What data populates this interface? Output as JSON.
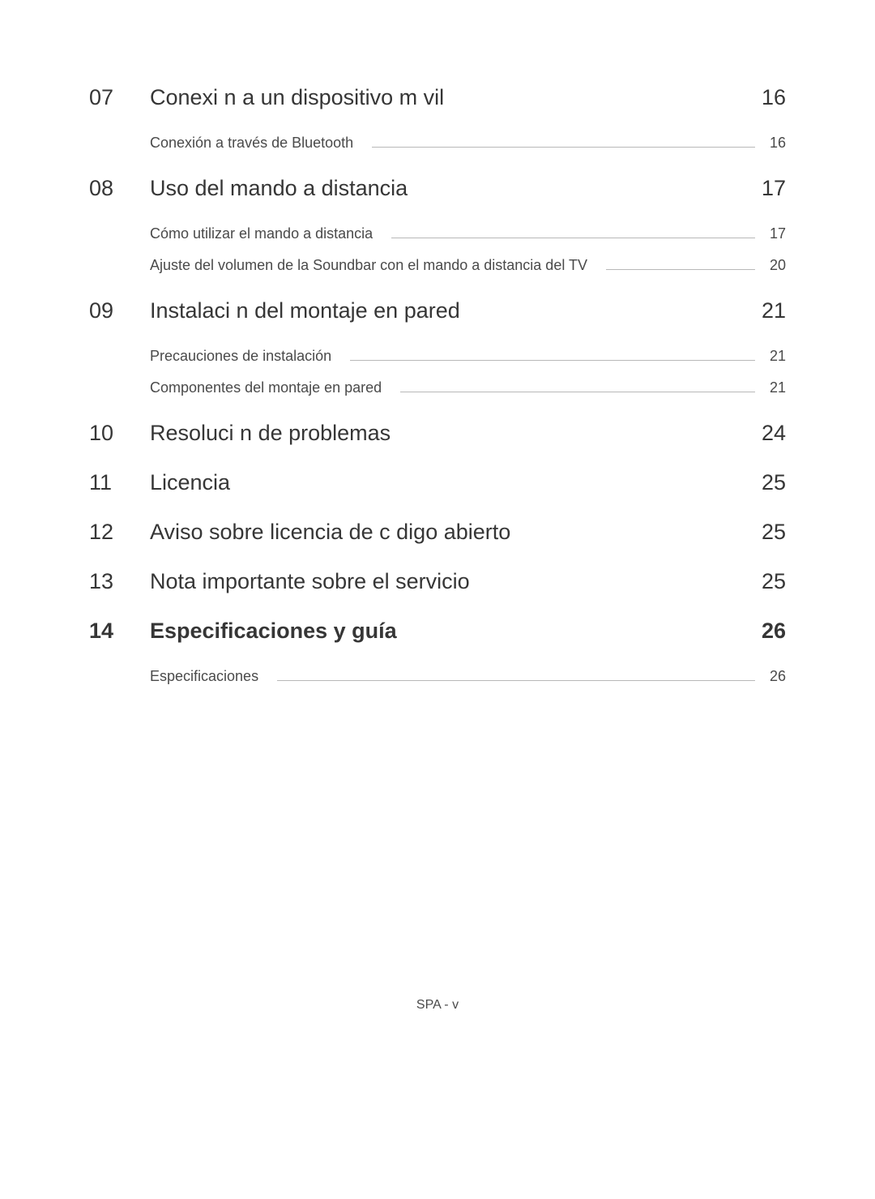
{
  "sections": [
    {
      "number": "07",
      "title": "Conexi n a un dispositivo m vil",
      "page": "16",
      "bold": false,
      "subs": [
        {
          "title": "Conexión a través de Bluetooth",
          "page": "16"
        }
      ]
    },
    {
      "number": "08",
      "title": "Uso del mando a distancia",
      "page": "17",
      "bold": false,
      "subs": [
        {
          "title": "Cómo utilizar el mando a distancia",
          "page": "17"
        },
        {
          "title": "Ajuste del volumen de la Soundbar con el mando a distancia del TV",
          "page": "20"
        }
      ]
    },
    {
      "number": "09",
      "title": "Instalaci n del montaje en pared",
      "page": "21",
      "bold": false,
      "subs": [
        {
          "title": "Precauciones de instalación",
          "page": "21"
        },
        {
          "title": "Componentes del montaje en pared",
          "page": "21"
        }
      ]
    },
    {
      "number": "10",
      "title": "Resoluci n de problemas",
      "page": "24",
      "bold": false,
      "subs": []
    },
    {
      "number": "11",
      "title": "Licencia",
      "page": "25",
      "bold": false,
      "subs": []
    },
    {
      "number": "12",
      "title": "Aviso sobre licencia de c digo abierto",
      "page": "25",
      "bold": false,
      "subs": []
    },
    {
      "number": "13",
      "title": "Nota importante sobre el servicio",
      "page": "25",
      "bold": false,
      "subs": []
    },
    {
      "number": "14",
      "title": "Especificaciones y guía",
      "page": "26",
      "bold": true,
      "subs": [
        {
          "title": "Especificaciones",
          "page": "26"
        }
      ]
    }
  ],
  "footer": "SPA - v"
}
